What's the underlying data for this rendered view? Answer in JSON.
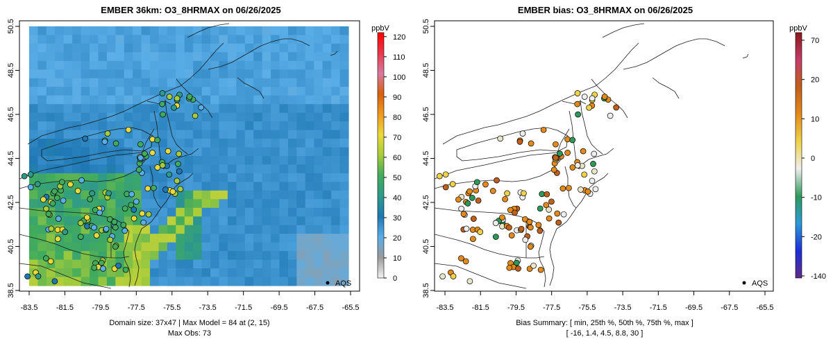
{
  "panels": [
    {
      "title": "EMBER 36km: O3_8HRMAX on 06/26/2025",
      "unit": "ppbV",
      "legend_label": "AQS",
      "summary_line1": "Domain size: 37x47 | Max Model = 84 at (2, 15)",
      "summary_line2": "Max Obs: 73",
      "x_ticks": [
        "-83.5",
        "-81.5",
        "-79.5",
        "-77.5",
        "-75.5",
        "-73.5",
        "-71.5",
        "-69.5",
        "-67.5",
        "-65.5"
      ],
      "y_ticks": [
        "38.5",
        "40.5",
        "42.5",
        "44.5",
        "46.5",
        "48.5",
        "50.5"
      ],
      "colorbar_ticks": [
        "0",
        "10",
        "20",
        "30",
        "40",
        "50",
        "60",
        "70",
        "80",
        "90",
        "100",
        "110",
        "120"
      ],
      "colorbar_range": [
        0,
        122
      ],
      "colorbar_colors": [
        "#f2f2f2",
        "#9a9a9a",
        "#5aaee8",
        "#1f78b4",
        "#2f9a8a",
        "#41ab5d",
        "#a6cc3a",
        "#ebd93a",
        "#ef9a1f",
        "#d95f0e",
        "#d87aa0",
        "#e8384a",
        "#ff0000"
      ]
    },
    {
      "title": "EMBER bias: O3_8HRMAX on 06/26/2025",
      "unit": "ppbV",
      "legend_label": "AQS",
      "summary_line1": "Bias Summary: [ min, 25th %, 50th %, 75th %, max ]",
      "summary_line2": "[ -16,   1.4,   4.5,   8.8,   30 ]",
      "x_ticks": [
        "-83.5",
        "-81.5",
        "-79.5",
        "-77.5",
        "-75.5",
        "-73.5",
        "-71.5",
        "-69.5",
        "-67.5",
        "-65.5"
      ],
      "y_ticks": [
        "38.5",
        "40.5",
        "42.5",
        "44.5",
        "46.5",
        "48.5",
        "50.5"
      ],
      "colorbar_ticks": [
        "-140",
        "-20",
        "-10",
        "0",
        "10",
        "20",
        "70"
      ],
      "colorbar_colors": [
        "#5e2c8a",
        "#1c2ed8",
        "#2c9ad8",
        "#2e9a5a",
        "#eeeeee",
        "#eed34a",
        "#e38a1a",
        "#c0601a",
        "#c53c6a",
        "#8a1a1a"
      ]
    }
  ]
}
